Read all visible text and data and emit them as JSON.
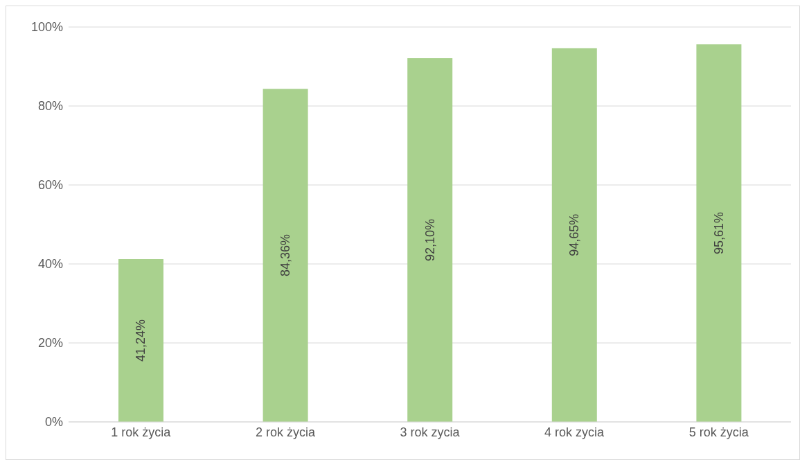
{
  "chart_data": {
    "type": "bar",
    "categories": [
      "1 rok życia",
      "2 rok życia",
      "3 rok zycia",
      "4 rok zycia",
      "5 rok życia"
    ],
    "values": [
      41.24,
      84.36,
      92.1,
      94.65,
      95.61
    ],
    "value_labels": [
      "41,24%",
      "84,36%",
      "92,10%",
      "94,65%",
      "95,61%"
    ],
    "color": "#a9d18e",
    "ylim": [
      0,
      100
    ],
    "yticks": [
      {
        "value": 0,
        "label": "0%"
      },
      {
        "value": 20,
        "label": "20%"
      },
      {
        "value": 40,
        "label": "40%"
      },
      {
        "value": 60,
        "label": "60%"
      },
      {
        "value": 80,
        "label": "80%"
      },
      {
        "value": 100,
        "label": "100%"
      }
    ],
    "grid": "y"
  }
}
